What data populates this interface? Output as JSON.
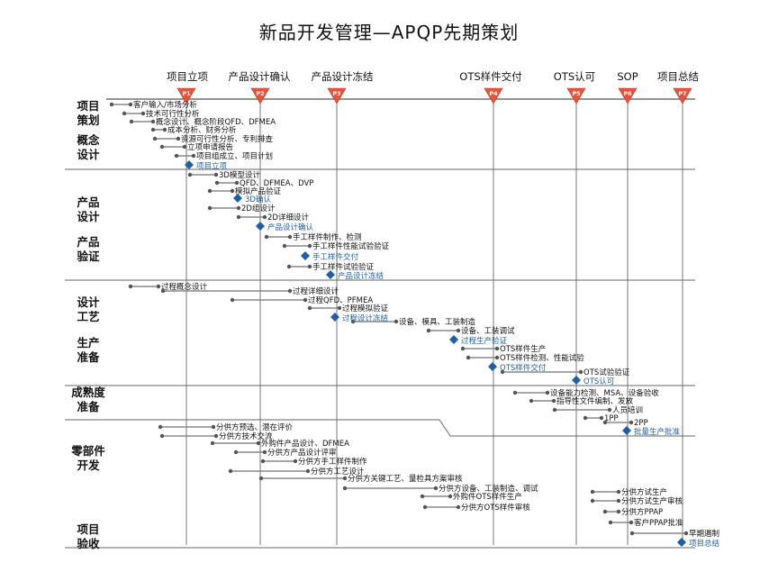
{
  "title": "新品开发管理—APQP先期策划",
  "milestones": [
    {
      "id": "P1",
      "label": "项目立项"
    },
    {
      "id": "P2",
      "label": "产品设计确认"
    },
    {
      "id": "P3",
      "label": "产品设计冻结"
    },
    {
      "id": "P4",
      "label": "OTS样件交付"
    },
    {
      "id": "P5",
      "label": "OTS认可"
    },
    {
      "id": "P6",
      "label": "SOP"
    },
    {
      "id": "P7",
      "label": "项目总结"
    }
  ],
  "phases": [
    "项目\n策划",
    "概念\n设计",
    "产品\n设计",
    "产品\n验证",
    "设计\n工艺",
    "生产\n准备",
    "成熟度\n准备",
    "零部件\n开发",
    "项目\n验收"
  ],
  "tasks": [
    "客户输入/市场分析",
    "技术可行性分析",
    "概念设计、概念阶段QFD、DFMEA",
    "成本分析、财务分析",
    "资源可行性分析、专利排查",
    "立项申请报告",
    "项目组成立、项目计划",
    "项目立项",
    "3D模型设计",
    "QFD、DFMEA、DVP",
    "模拟产品验证",
    "3D确认",
    "2D组设计",
    "2D详细设计",
    "产品设计确认",
    "手工样件制作、检测",
    "手工样件性能试验验证",
    "手工样件交付",
    "手工样件试验验证",
    "产品设计冻结",
    "过程概念设计",
    "过程详细设计",
    "过程QFD、PFMEA",
    "过程模拟验证",
    "过程设计冻结",
    "设备、模具、工装制造",
    "设备、工装调试",
    "过程生产验证",
    "OTS样件生产",
    "OTS样件检测、性能试验",
    "OTS样件交付",
    "OTS试验验证",
    "OTS认可",
    "设备能力检测、MSA、设备验收",
    "指导性文件编制、发放",
    "人员培训",
    "1PP",
    "2PP",
    "批量生产批准",
    "分供方预选、潜在评价",
    "分供方技术交流",
    "外购件产品设计、DFMEA",
    "分供方产品设计评审",
    "分供方手工样件制作",
    "分供方工艺设计",
    "分供方关键工艺、量检具方案审核",
    "分供方设备、工装制造、调试",
    "外购件OTS样件生产",
    "分供方OTS样件审核",
    "分供方试生产",
    "分供方试生产审核",
    "分供方PPAP",
    "客户PPAP批准",
    "早期遏制",
    "项目总结"
  ],
  "colors": {
    "milestone": "#e8533a",
    "diamond": "#1f5fa8",
    "connector": "#888888",
    "grid": "#555555"
  }
}
